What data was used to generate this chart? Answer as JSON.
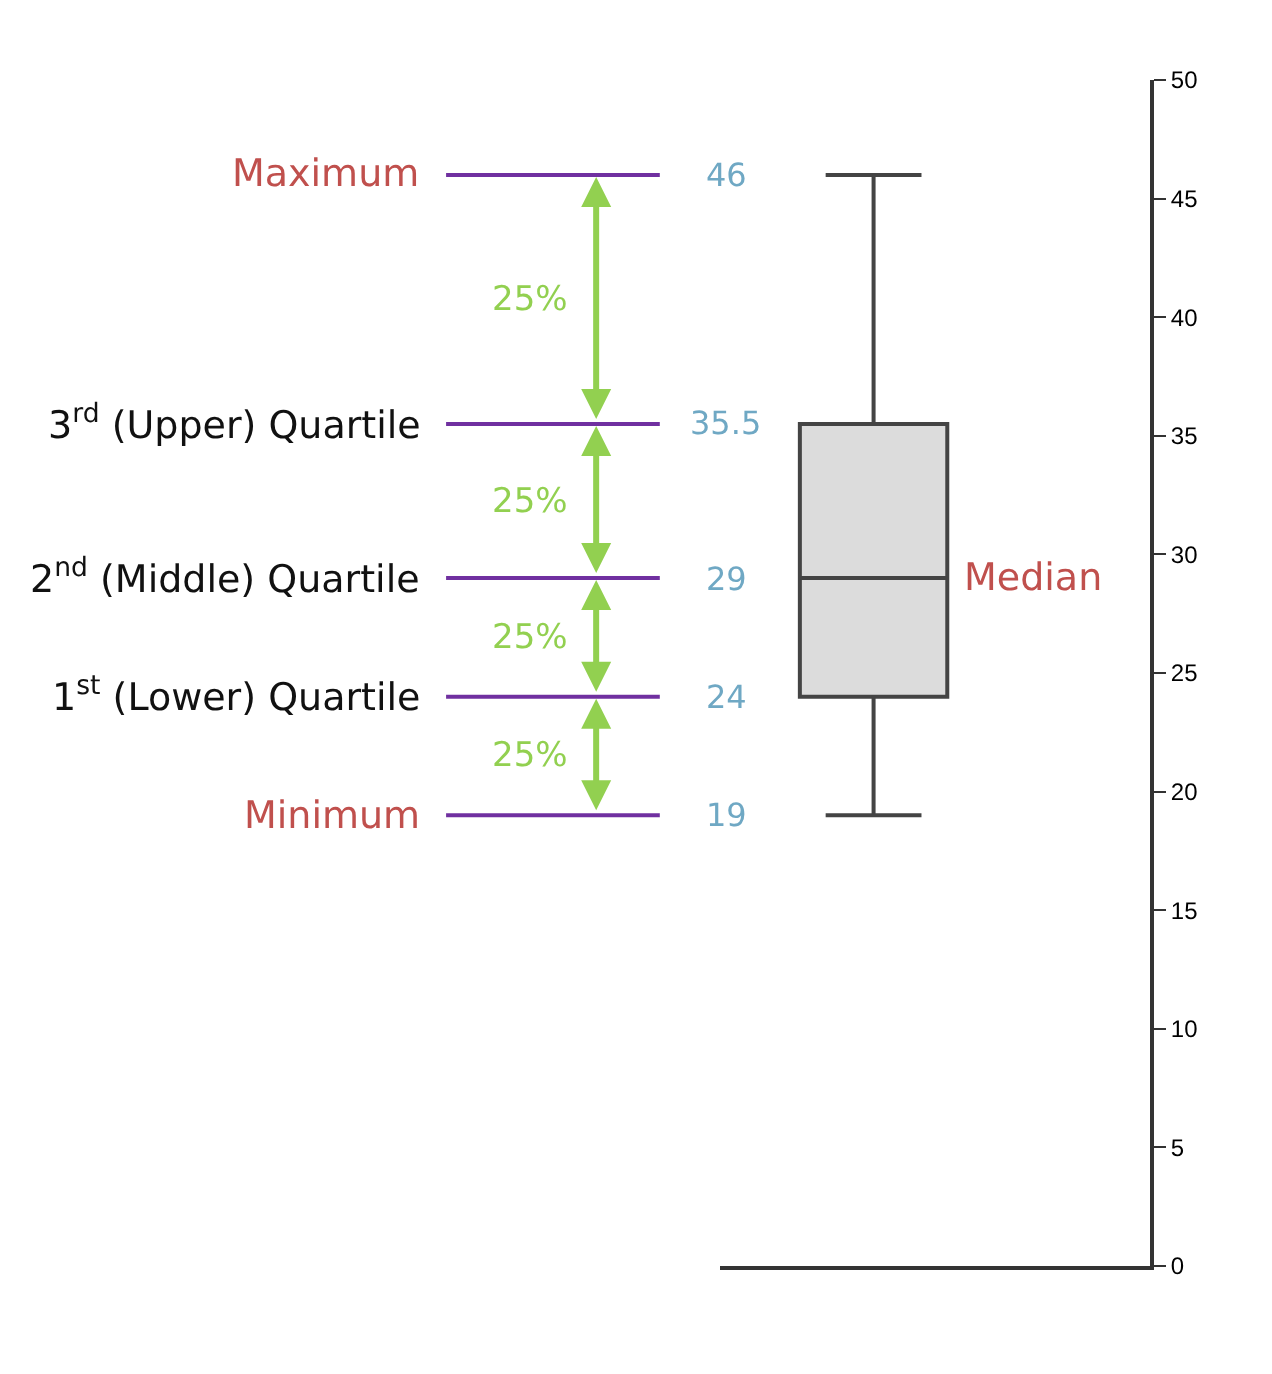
{
  "chart_data": {
    "type": "box",
    "categories": [
      null
    ],
    "boxes": [
      {
        "low": 19,
        "q1": 24,
        "median": 29,
        "q3": 35.5,
        "high": 46
      }
    ],
    "color": "#dcdcdc",
    "ylim": [
      0,
      50
    ],
    "yticks": [
      0,
      5,
      10,
      15,
      20,
      25,
      30,
      35,
      40,
      45,
      50
    ],
    "grid": false,
    "legend": false,
    "ref_lines": [
      {
        "axis": "y",
        "value": 46,
        "label": "Maximum",
        "color": "#7030a0"
      },
      {
        "axis": "y",
        "value": 35.5,
        "label": "3$^{rd}$ (Upper) Quartile",
        "color": "#7030a0"
      },
      {
        "axis": "y",
        "value": 29,
        "label": "2$^{nd}$ (Middle) Quartile",
        "color": "#7030a0"
      },
      {
        "axis": "y",
        "value": 24,
        "label": "1$^{st}$ (Lower) Quartile",
        "color": "#7030a0"
      },
      {
        "axis": "y",
        "value": 19,
        "label": "Minimum",
        "color": "#7030a0"
      }
    ],
    "annotations": [
      "Median",
      "25%",
      "25%",
      "25%",
      "25%",
      "46",
      "35.5",
      "29",
      "24",
      "19"
    ]
  }
}
